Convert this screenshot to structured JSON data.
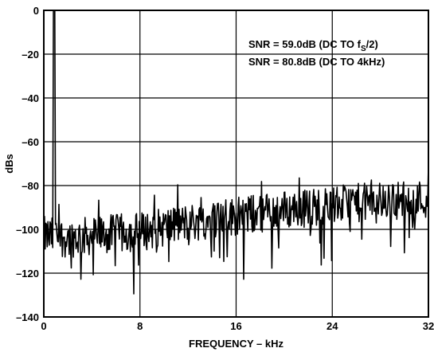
{
  "chart_data": {
    "type": "line",
    "xlabel": "FREQUENCY – kHz",
    "ylabel": "dBs",
    "xlim": [
      0,
      32
    ],
    "ylim": [
      -140,
      0
    ],
    "x_ticks": [
      "0",
      "8",
      "16",
      "24",
      "32"
    ],
    "y_ticks": [
      "0",
      "–20",
      "–40",
      "–60",
      "–80",
      "–100",
      "–120",
      "–140"
    ],
    "grid": true,
    "annotations": [
      {
        "prefix": "SNR = 59.0dB (DC TO f",
        "sub": "S",
        "suffix": "/2)"
      },
      {
        "prefix": "SNR = 80.8dB (DC TO 4kHz)",
        "sub": "",
        "suffix": ""
      }
    ],
    "series": [
      {
        "color": "#000000",
        "noise_floor_profile": {
          "x": [
            0,
            2,
            4,
            8,
            12,
            16,
            20,
            24,
            28,
            32
          ],
          "y": [
            -103,
            -104,
            -103,
            -101,
            -97,
            -94,
            -91,
            -89,
            -87,
            -86
          ]
        },
        "tone": {
          "x": 0.875,
          "y": 0
        }
      }
    ]
  },
  "colors": {
    "line": "#000000",
    "grid": "#000000",
    "background": "#ffffff"
  }
}
